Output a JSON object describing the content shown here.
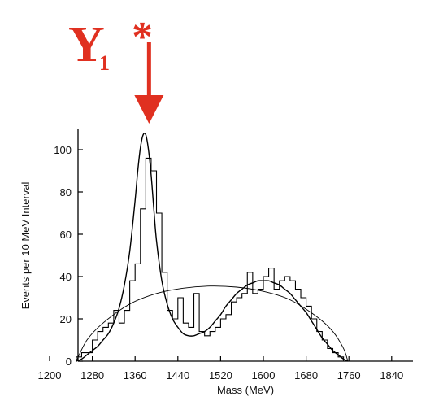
{
  "colors": {
    "annotation": "#e03020",
    "ink": "#000000"
  },
  "annotation": {
    "symbol": "Y",
    "subscript": "1",
    "star": "*"
  },
  "chart_data": {
    "type": "line",
    "title": "",
    "xlabel": "Mass (MeV)",
    "ylabel": "Events per 10 MeV Interval",
    "xlim": [
      1200,
      1880
    ],
    "ylim": [
      0,
      110
    ],
    "x_ticks": [
      1200,
      1280,
      1360,
      1440,
      1520,
      1600,
      1680,
      1760,
      1840
    ],
    "x_tick_labels": [
      "1200",
      "1280",
      "1360",
      "1440",
      "1520",
      "1600",
      "1680",
      "1760",
      "1840"
    ],
    "y_ticks": [
      0,
      20,
      40,
      60,
      80,
      100
    ],
    "y_tick_labels": [
      "0",
      "20",
      "40",
      "60",
      "80",
      "100"
    ],
    "histogram": {
      "name": "Events",
      "bin_width": 10,
      "bin_starts": [
        1250,
        1260,
        1270,
        1280,
        1290,
        1300,
        1310,
        1320,
        1330,
        1340,
        1350,
        1360,
        1370,
        1380,
        1390,
        1400,
        1410,
        1420,
        1430,
        1440,
        1450,
        1460,
        1470,
        1480,
        1490,
        1500,
        1510,
        1520,
        1530,
        1540,
        1550,
        1560,
        1570,
        1580,
        1590,
        1600,
        1610,
        1620,
        1630,
        1640,
        1650,
        1660,
        1670,
        1680,
        1690,
        1700,
        1710,
        1720,
        1730,
        1740,
        1750
      ],
      "counts": [
        2,
        4,
        4,
        10,
        14,
        16,
        18,
        24,
        18,
        24,
        38,
        46,
        72,
        96,
        90,
        70,
        42,
        24,
        20,
        30,
        18,
        16,
        32,
        14,
        12,
        14,
        16,
        20,
        22,
        28,
        30,
        32,
        42,
        32,
        34,
        40,
        44,
        34,
        38,
        40,
        38,
        34,
        30,
        26,
        20,
        14,
        10,
        6,
        4,
        2,
        0
      ]
    },
    "fit_curve": {
      "name": "Fit",
      "x": [
        1250,
        1260,
        1270,
        1280,
        1290,
        1300,
        1310,
        1320,
        1330,
        1340,
        1350,
        1360,
        1365,
        1370,
        1375,
        1380,
        1385,
        1390,
        1395,
        1400,
        1410,
        1420,
        1430,
        1440,
        1450,
        1460,
        1470,
        1480,
        1490,
        1500,
        1510,
        1520,
        1530,
        1540,
        1550,
        1560,
        1570,
        1580,
        1590,
        1600,
        1610,
        1620,
        1630,
        1640,
        1650,
        1660,
        1670,
        1680,
        1690,
        1700,
        1710,
        1720,
        1730,
        1740,
        1750,
        1758
      ],
      "y": [
        0,
        1,
        3,
        5,
        7,
        10,
        13,
        18,
        25,
        36,
        52,
        76,
        90,
        101,
        107,
        107,
        100,
        88,
        72,
        57,
        38,
        27,
        20,
        16,
        13,
        12,
        12,
        13,
        14,
        16,
        19,
        22,
        26,
        29,
        32,
        34,
        36,
        37,
        38,
        38,
        38,
        37,
        36,
        34,
        32,
        29,
        26,
        23,
        19,
        15,
        11,
        8,
        5,
        3,
        1,
        0
      ]
    },
    "background_curve": {
      "name": "Background",
      "x": [
        1250,
        1270,
        1300,
        1350,
        1400,
        1450,
        1500,
        1550,
        1600,
        1650,
        1700,
        1730,
        1750,
        1758
      ],
      "y": [
        0,
        10,
        18,
        27,
        32,
        34.5,
        35.5,
        35,
        33,
        29,
        21,
        14,
        6,
        0
      ]
    },
    "annotation_arrow_x": 1380
  }
}
